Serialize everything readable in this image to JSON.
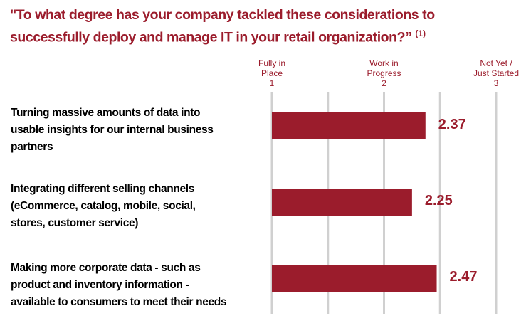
{
  "chart_data": {
    "type": "barh",
    "title": "\"To what degree has your company tackled these considerations to\nsuccessfully deploy and manage IT in your retail organization?”",
    "title_note": "(1)",
    "categories": [
      "Turning massive amounts of data into\nusable insights for our internal business\npartners",
      "Integrating different selling channels\n(eCommerce, catalog, mobile, social,\nstores, customer service)",
      "Making more corporate data - such as\nproduct and inventory information -\navailable to consumers to meet their needs"
    ],
    "values": [
      2.37,
      2.25,
      2.47
    ],
    "color": "#9b1c2c",
    "xlim": [
      1,
      3
    ],
    "xticks": [
      {
        "value": 1,
        "label": "Fully in\nPlace\n1"
      },
      {
        "value": 2,
        "label": "Work in\nProgress\n2"
      },
      {
        "value": 3,
        "label": "Not Yet /\nJust Started\n3"
      }
    ],
    "minor_xticks": [
      1.5,
      2.5
    ],
    "grid": true
  }
}
